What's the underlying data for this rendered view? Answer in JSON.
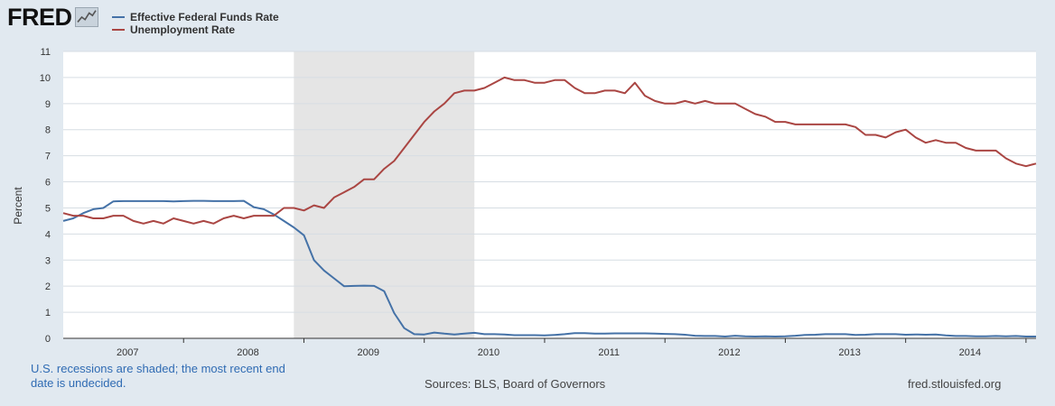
{
  "logo": {
    "text": "FRED"
  },
  "colors": {
    "fedfunds": "#4572a7",
    "unrate": "#aa4643",
    "recession": "#e5e5e5",
    "grid": "#d6dde3",
    "plot_bg": "#ffffff"
  },
  "footer": {
    "note": "U.S. recessions are shaded; the most recent end date is undecided.",
    "sources": "Sources: BLS, Board of Governors",
    "site": "fred.stlouisfed.org"
  },
  "chart_data": {
    "type": "line",
    "title": "",
    "xlabel": "",
    "ylabel": "Percent",
    "ylim": [
      0,
      11
    ],
    "yticks": [
      0,
      1,
      2,
      3,
      4,
      5,
      6,
      7,
      8,
      9,
      10,
      11
    ],
    "xlim": [
      "2006-01",
      "2014-02"
    ],
    "xticks": [
      "2007",
      "2008",
      "2009",
      "2010",
      "2011",
      "2012",
      "2013",
      "2014"
    ],
    "grid": true,
    "legend_position": "top-left",
    "recession_shading": [
      {
        "start": "2007-12",
        "end": "2009-06"
      }
    ],
    "x": [
      "2006-01",
      "2006-02",
      "2006-03",
      "2006-04",
      "2006-05",
      "2006-06",
      "2006-07",
      "2006-08",
      "2006-09",
      "2006-10",
      "2006-11",
      "2006-12",
      "2007-01",
      "2007-02",
      "2007-03",
      "2007-04",
      "2007-05",
      "2007-06",
      "2007-07",
      "2007-08",
      "2007-09",
      "2007-10",
      "2007-11",
      "2007-12",
      "2008-01",
      "2008-02",
      "2008-03",
      "2008-04",
      "2008-05",
      "2008-06",
      "2008-07",
      "2008-08",
      "2008-09",
      "2008-10",
      "2008-11",
      "2008-12",
      "2009-01",
      "2009-02",
      "2009-03",
      "2009-04",
      "2009-05",
      "2009-06",
      "2009-07",
      "2009-08",
      "2009-09",
      "2009-10",
      "2009-11",
      "2009-12",
      "2010-01",
      "2010-02",
      "2010-03",
      "2010-04",
      "2010-05",
      "2010-06",
      "2010-07",
      "2010-08",
      "2010-09",
      "2010-10",
      "2010-11",
      "2010-12",
      "2011-01",
      "2011-02",
      "2011-03",
      "2011-04",
      "2011-05",
      "2011-06",
      "2011-07",
      "2011-08",
      "2011-09",
      "2011-10",
      "2011-11",
      "2011-12",
      "2012-01",
      "2012-02",
      "2012-03",
      "2012-04",
      "2012-05",
      "2012-06",
      "2012-07",
      "2012-08",
      "2012-09",
      "2012-10",
      "2012-11",
      "2012-12",
      "2013-01",
      "2013-02",
      "2013-03",
      "2013-04",
      "2013-05",
      "2013-06",
      "2013-07",
      "2013-08",
      "2013-09",
      "2013-10",
      "2013-11",
      "2013-12",
      "2014-01",
      "2014-02"
    ],
    "series": [
      {
        "name": "Effective Federal Funds Rate",
        "color": "#4572a7",
        "values": [
          4.5,
          4.6,
          4.8,
          4.95,
          5.0,
          5.25,
          5.26,
          5.26,
          5.26,
          5.26,
          5.26,
          5.25,
          5.26,
          5.27,
          5.27,
          5.26,
          5.26,
          5.26,
          5.27,
          5.03,
          4.95,
          4.75,
          4.5,
          4.25,
          3.95,
          3.0,
          2.6,
          2.3,
          2.0,
          2.01,
          2.02,
          2.01,
          1.81,
          0.97,
          0.39,
          0.16,
          0.15,
          0.22,
          0.18,
          0.15,
          0.18,
          0.21,
          0.16,
          0.16,
          0.15,
          0.12,
          0.12,
          0.12,
          0.11,
          0.13,
          0.16,
          0.2,
          0.2,
          0.18,
          0.18,
          0.19,
          0.19,
          0.19,
          0.19,
          0.18,
          0.17,
          0.16,
          0.14,
          0.1,
          0.09,
          0.09,
          0.07,
          0.1,
          0.08,
          0.07,
          0.08,
          0.07,
          0.08,
          0.1,
          0.13,
          0.14,
          0.16,
          0.16,
          0.16,
          0.13,
          0.14,
          0.16,
          0.16,
          0.16,
          0.14,
          0.15,
          0.14,
          0.15,
          0.11,
          0.09,
          0.09,
          0.08,
          0.08,
          0.09,
          0.08,
          0.09,
          0.07,
          0.07
        ]
      },
      {
        "name": "Unemployment Rate",
        "color": "#aa4643",
        "values": [
          4.8,
          4.7,
          4.7,
          4.6,
          4.6,
          4.7,
          4.7,
          4.5,
          4.4,
          4.5,
          4.4,
          4.6,
          4.5,
          4.4,
          4.5,
          4.4,
          4.6,
          4.7,
          4.6,
          4.7,
          4.7,
          4.7,
          5.0,
          5.0,
          4.9,
          5.1,
          5.0,
          5.4,
          5.6,
          5.8,
          6.1,
          6.1,
          6.5,
          6.8,
          7.3,
          7.8,
          8.3,
          8.7,
          9.0,
          9.4,
          9.5,
          9.5,
          9.6,
          9.8,
          10.0,
          9.9,
          9.9,
          9.8,
          9.8,
          9.9,
          9.9,
          9.6,
          9.4,
          9.4,
          9.5,
          9.5,
          9.4,
          9.8,
          9.3,
          9.1,
          9.0,
          9.0,
          9.1,
          9.0,
          9.1,
          9.0,
          9.0,
          9.0,
          8.8,
          8.6,
          8.5,
          8.3,
          8.3,
          8.2,
          8.2,
          8.2,
          8.2,
          8.2,
          8.2,
          8.1,
          7.8,
          7.8,
          7.7,
          7.9,
          8.0,
          7.7,
          7.5,
          7.6,
          7.5,
          7.5,
          7.3,
          7.2,
          7.2,
          7.2,
          6.9,
          6.7,
          6.6,
          6.7
        ]
      }
    ]
  }
}
